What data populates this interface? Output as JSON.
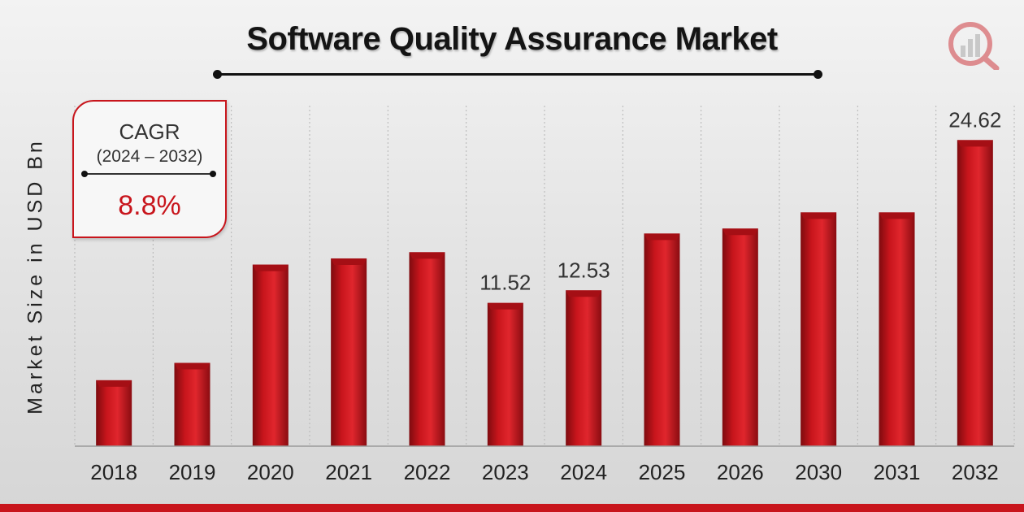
{
  "chart_data": {
    "type": "bar",
    "title": "Software Quality Assurance Market",
    "xlabel": "",
    "ylabel": "Market Size in USD Bn",
    "categories": [
      "2018",
      "2019",
      "2020",
      "2021",
      "2022",
      "2023",
      "2024",
      "2025",
      "2026",
      "2030",
      "2031",
      "2032"
    ],
    "values": [
      5.3,
      6.7,
      14.6,
      15.1,
      15.6,
      11.52,
      12.53,
      17.1,
      17.5,
      18.8,
      18.8,
      24.62
    ],
    "data_labels": [
      {
        "category": "2023",
        "text": "11.52"
      },
      {
        "category": "2024",
        "text": "12.53"
      },
      {
        "category": "2032",
        "text": "24.62"
      }
    ],
    "ylim": [
      0,
      30
    ],
    "grid": "vertical dashed",
    "legend": "none",
    "bar_color": "#c8151c",
    "annotation": {
      "label": "CAGR",
      "period": "(2024 – 2032)",
      "value": "8.8%"
    }
  },
  "colors": {
    "accent": "#c8151c",
    "title": "#141414"
  },
  "logo_icon": "bar-chart-magnifier-logo"
}
